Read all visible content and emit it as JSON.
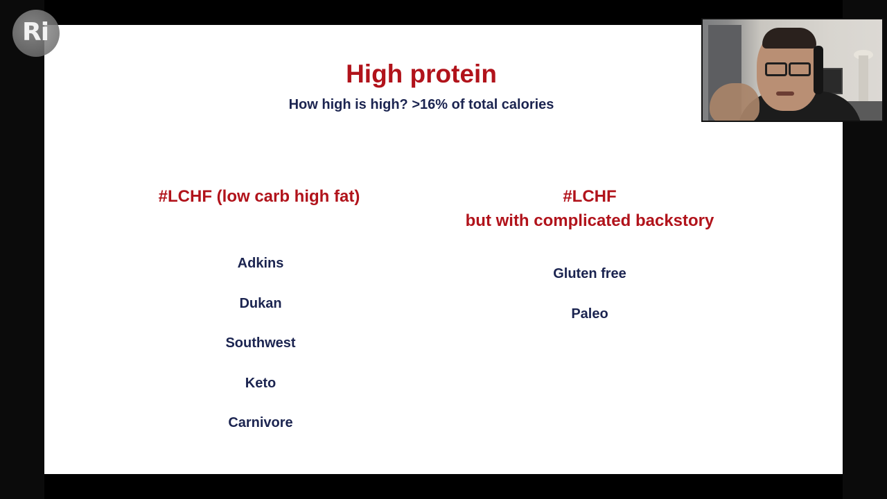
{
  "logo": {
    "text": "Ri"
  },
  "slide": {
    "title": "High protein",
    "subtitle": "How high is high? >16% of total calories",
    "left_column": {
      "heading": "#LCHF (low carb high fat)",
      "items": [
        "Adkins",
        "Dukan",
        "Southwest",
        "Keto",
        "Carnivore"
      ]
    },
    "right_column": {
      "heading_line1": "#LCHF",
      "heading_line2": "but with complicated backstory",
      "items": [
        "Gluten free",
        "Paleo"
      ]
    }
  },
  "colors": {
    "title": "#b1131b",
    "body_text": "#1b2450",
    "background": "#000000",
    "slide_background": "#ffffff"
  }
}
